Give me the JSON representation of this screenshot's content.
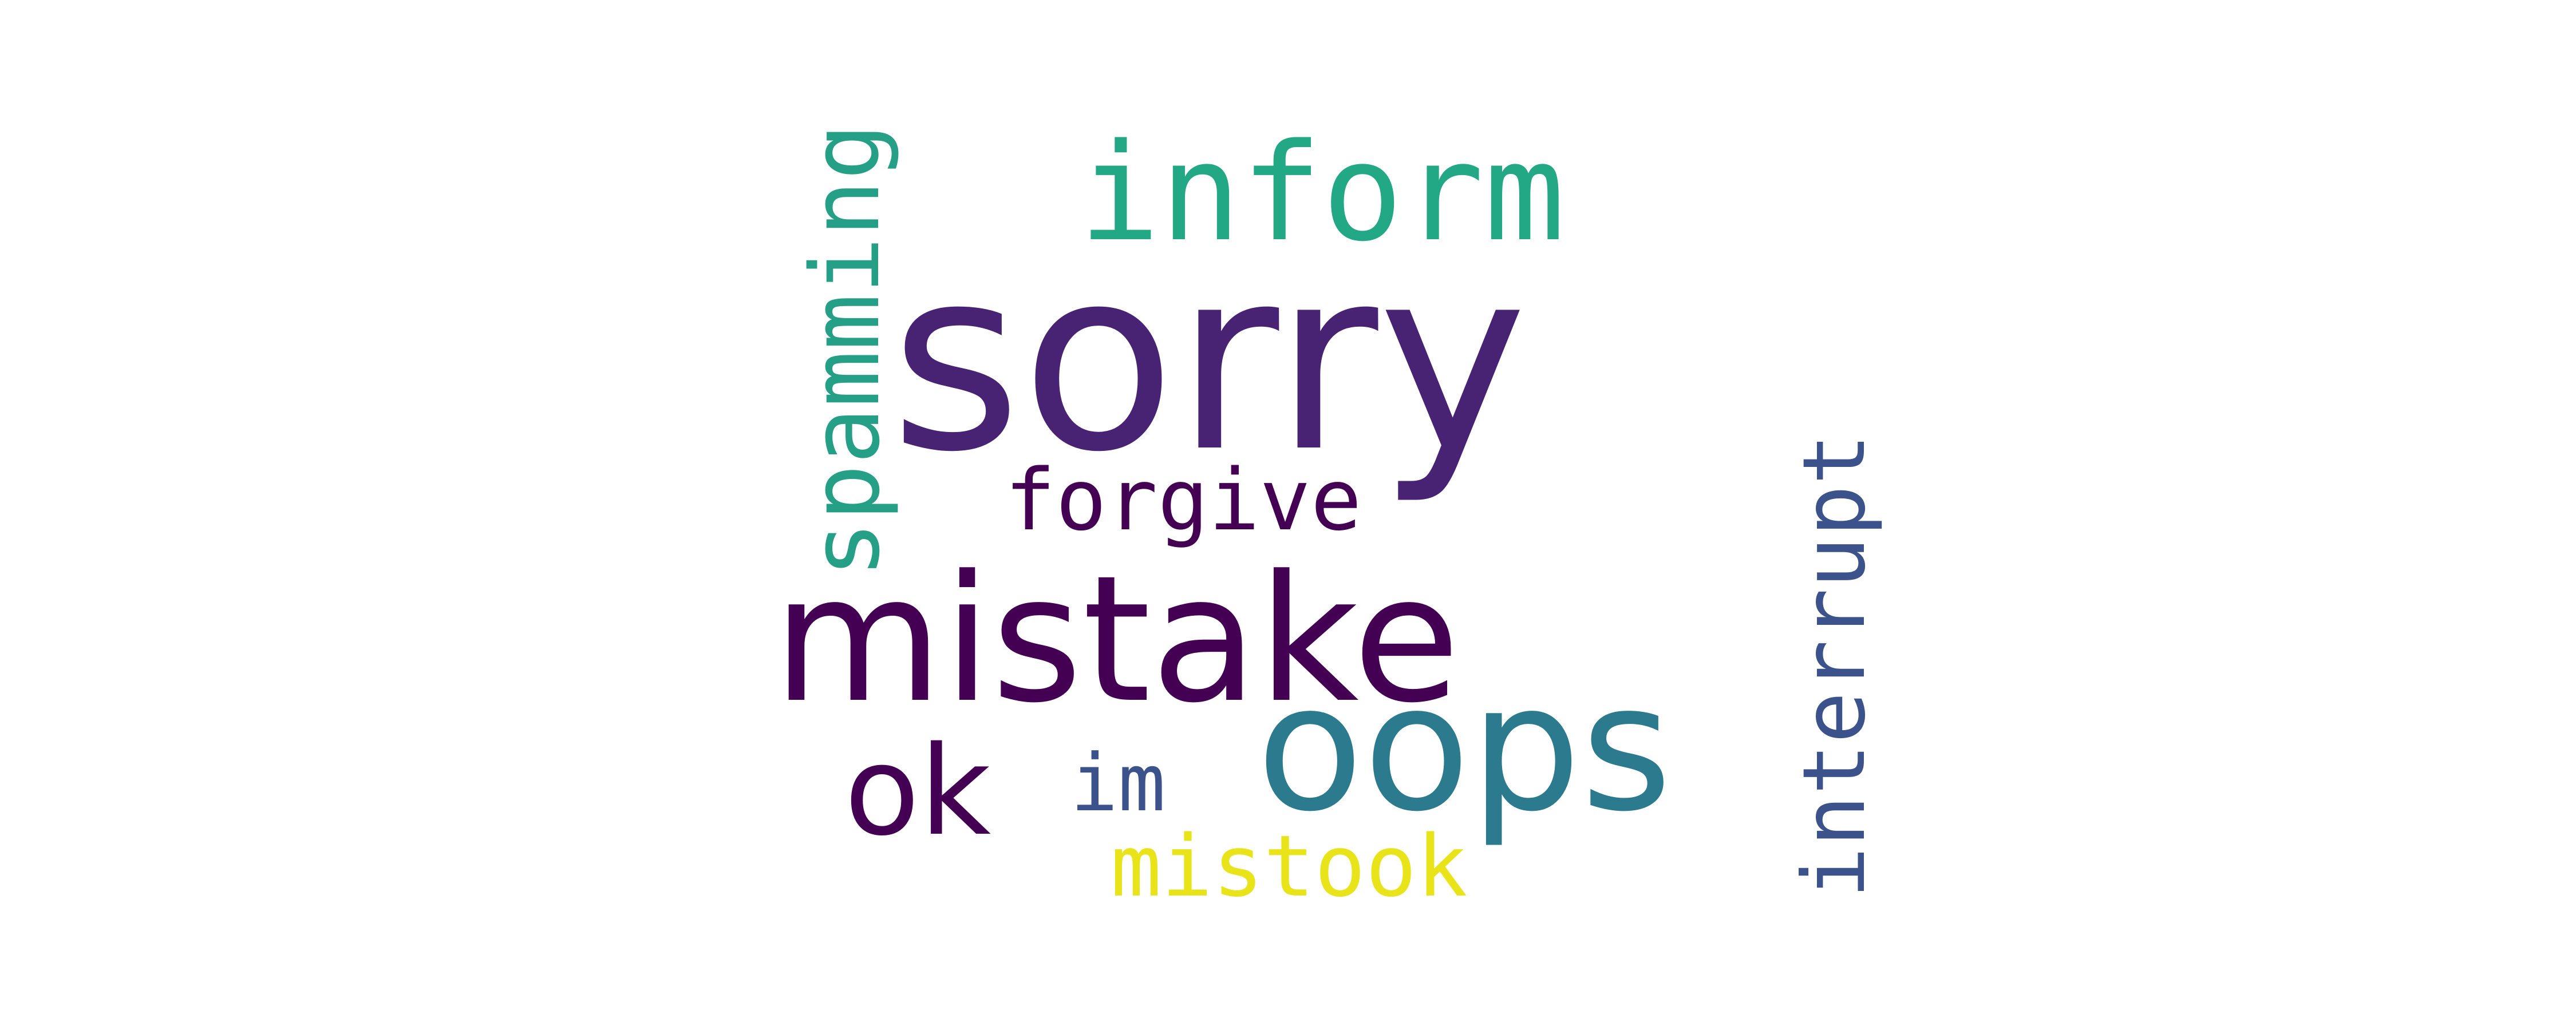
{
  "cloud": {
    "words": {
      "sorry": {
        "text": "sorry",
        "color": "#482374"
      },
      "inform": {
        "text": "inform",
        "color": "#22A884"
      },
      "mistake": {
        "text": "mistake",
        "color": "#440154"
      },
      "oops": {
        "text": "oops",
        "color": "#2C7A8E"
      },
      "ok": {
        "text": "ok",
        "color": "#440154"
      },
      "forgive": {
        "text": "forgive",
        "color": "#440154"
      },
      "im": {
        "text": "im",
        "color": "#3B528B"
      },
      "mistook": {
        "text": "mistook",
        "color": "#E8E419"
      },
      "spamming": {
        "text": "spamming",
        "color": "#25A087"
      },
      "interrupt": {
        "text": "interrupt",
        "color": "#3B528B"
      }
    }
  }
}
